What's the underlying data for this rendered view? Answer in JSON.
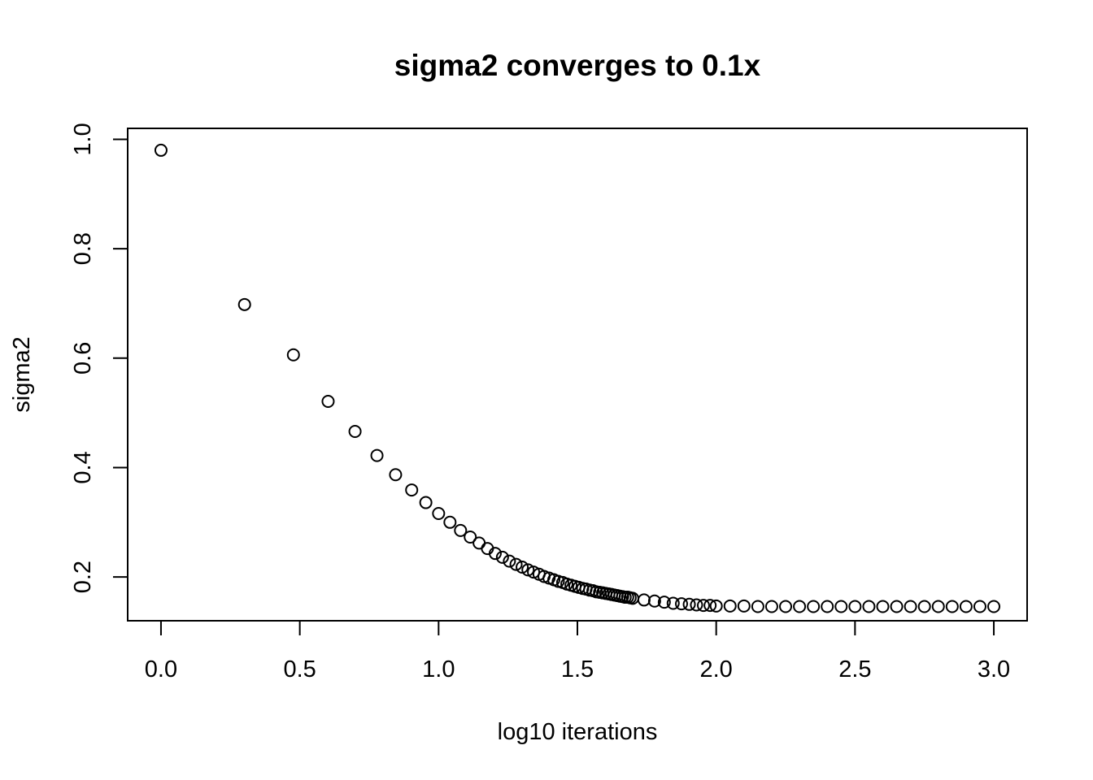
{
  "chart_data": {
    "type": "scatter",
    "title": "sigma2 converges to 0.1x",
    "xlabel": "log10 iterations",
    "ylabel": "sigma2",
    "xlim": [
      -0.12,
      3.12
    ],
    "ylim": [
      0.12,
      1.02
    ],
    "x_scale": "linear",
    "grid": false,
    "legend": "none",
    "x_ticks": [
      0.0,
      0.5,
      1.0,
      1.5,
      2.0,
      2.5,
      3.0
    ],
    "x_tick_labels": [
      "0.0",
      "0.5",
      "1.0",
      "1.5",
      "2.0",
      "2.5",
      "3.0"
    ],
    "y_ticks": [
      0.2,
      0.4,
      0.6,
      0.8,
      1.0
    ],
    "y_tick_labels": [
      "0.2",
      "0.4",
      "0.6",
      "0.8",
      "1.0"
    ],
    "marker": "open-circle",
    "color": "#000000",
    "series": [
      {
        "x": [
          0.0,
          0.301,
          0.477,
          0.602,
          0.699,
          0.778,
          0.845,
          0.903,
          0.954,
          1.0,
          1.041,
          1.079,
          1.114,
          1.146,
          1.176,
          1.204,
          1.23,
          1.255,
          1.279,
          1.301,
          1.322,
          1.342,
          1.362,
          1.38,
          1.398,
          1.415,
          1.431,
          1.447,
          1.462,
          1.477,
          1.491,
          1.505,
          1.519,
          1.531,
          1.544,
          1.556,
          1.568,
          1.58,
          1.591,
          1.602,
          1.613,
          1.623,
          1.633,
          1.643,
          1.653,
          1.663,
          1.672,
          1.681,
          1.69,
          1.699,
          1.74,
          1.778,
          1.813,
          1.845,
          1.875,
          1.903,
          1.929,
          1.954,
          1.978,
          2.0,
          2.05,
          2.1,
          2.15,
          2.2,
          2.25,
          2.3,
          2.35,
          2.4,
          2.45,
          2.5,
          2.55,
          2.6,
          2.65,
          2.7,
          2.75,
          2.8,
          2.85,
          2.9,
          2.95,
          3.0
        ],
        "y": [
          0.98,
          0.698,
          0.606,
          0.521,
          0.466,
          0.422,
          0.387,
          0.359,
          0.336,
          0.316,
          0.3,
          0.285,
          0.273,
          0.262,
          0.252,
          0.243,
          0.236,
          0.229,
          0.223,
          0.218,
          0.213,
          0.209,
          0.205,
          0.201,
          0.198,
          0.195,
          0.192,
          0.19,
          0.187,
          0.185,
          0.183,
          0.181,
          0.179,
          0.178,
          0.176,
          0.175,
          0.173,
          0.172,
          0.171,
          0.17,
          0.169,
          0.168,
          0.167,
          0.166,
          0.165,
          0.164,
          0.163,
          0.163,
          0.162,
          0.161,
          0.158,
          0.156,
          0.154,
          0.152,
          0.151,
          0.15,
          0.149,
          0.148,
          0.148,
          0.147,
          0.147,
          0.147,
          0.146,
          0.146,
          0.146,
          0.146,
          0.146,
          0.146,
          0.146,
          0.146,
          0.146,
          0.146,
          0.146,
          0.146,
          0.146,
          0.146,
          0.146,
          0.146,
          0.146,
          0.146
        ]
      }
    ]
  }
}
